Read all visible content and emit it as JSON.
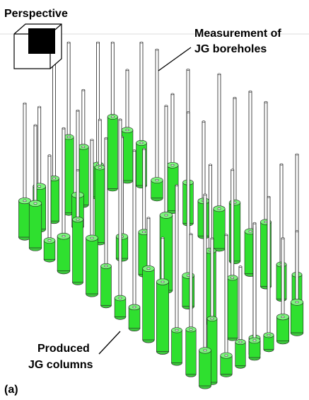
{
  "header": {
    "title": "Perspective"
  },
  "annotations": [
    {
      "lines": [
        "Measurement of",
        "JG boreholes"
      ]
    },
    {
      "lines": [
        "Produced",
        "JG columns"
      ]
    }
  ],
  "panel_label": "(a)"
}
